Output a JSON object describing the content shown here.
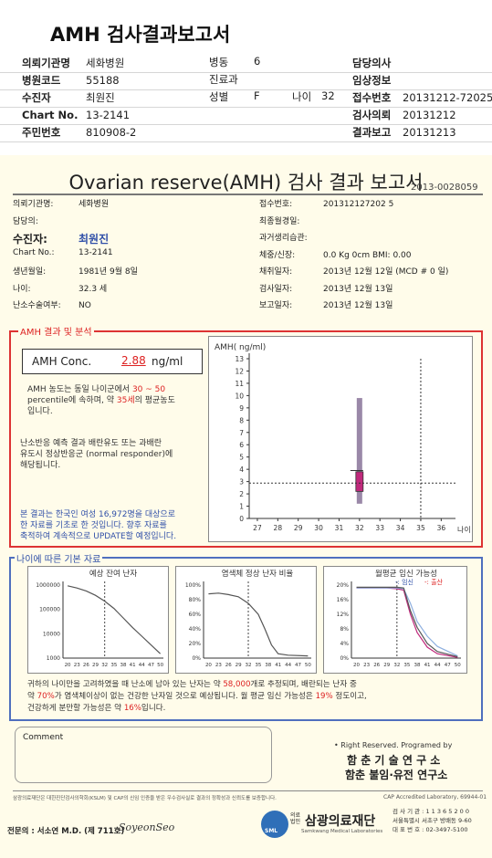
{
  "title": "AMH 검사결과보고서",
  "header": {
    "left": [
      [
        "의뢰기관명",
        "세화병원"
      ],
      [
        "병원코드",
        "55188"
      ],
      [
        "수진자",
        "최원진"
      ],
      [
        "Chart No.",
        "13-2141"
      ],
      [
        "주민번호",
        "810908-2"
      ]
    ],
    "ward": [
      "병동",
      "6"
    ],
    "dept": [
      "진료과",
      ""
    ],
    "sex": [
      "성별",
      "F"
    ],
    "age": [
      "나이",
      "32"
    ],
    "right": [
      [
        "담당의사",
        ""
      ],
      [
        "임상정보",
        ""
      ],
      [
        "접수번호",
        "20131212-72025"
      ],
      [
        "검사의뢰",
        "20131212"
      ],
      [
        "결과보고",
        "20131213"
      ]
    ]
  },
  "report": {
    "title": "Ovarian reserve(AMH) 검사 결과 보고서",
    "code": "2013-0028059",
    "left_fields": [
      [
        "의뢰기관명:",
        "세화병원"
      ],
      [
        "담당의:",
        ""
      ],
      [
        "수진자:",
        "최원진"
      ],
      [
        "Chart No.:",
        "13-2141"
      ],
      [
        "생년월일:",
        "1981년 9월 8일"
      ],
      [
        "나이:",
        "32.3 세"
      ],
      [
        "난소수술여부:",
        "NO"
      ]
    ],
    "right_fields": [
      [
        "접수번호:",
        "201312127202 5"
      ],
      [
        "최종월경일:",
        ""
      ],
      [
        "과거생리습관:",
        ""
      ],
      [
        "체중/신장:",
        "0.0 Kg     0cm    BMI:  0.00"
      ],
      [
        "채취일자:",
        "2013년 12월 12일 (MCD # 0 일)"
      ],
      [
        "검사일자:",
        "2013년 12월 13일"
      ],
      [
        "보고일자:",
        "2013년 12월 13일"
      ]
    ],
    "amh_section": "AMH 결과 및 분석",
    "amh_label": "AMH Conc.",
    "amh_value": "2.88",
    "amh_unit": "ng/ml",
    "amh_text1a": "AMH 농도는 동일 나이군에서",
    "amh_text1b": "30 ~ 50",
    "amh_text2a": "percentile에 속하며, 약",
    "amh_text2b": "35세",
    "amh_text2c": "의 평균농도",
    "amh_text3": "입니다.",
    "resp_text": [
      "난소반응 예측 결과 배란유도 또는 과배란",
      "유도시 정상반응군 (normal responder)에",
      "해당됩니다."
    ],
    "note_text": [
      "본 결과는 한국인 여성 16,972명을 대상으로",
      "한 자료를 기초로 한 것입니다. 향후 자료를",
      "축적하여 계속적으로 UPDATE할 예정입니다."
    ],
    "chart_ylabel": "AMH( ng/ml)",
    "chart_xlabel": "나이",
    "age_section": "나이에 따른 기본 자료",
    "mini1_title": "예상 잔여 난자",
    "mini2_title": "염색체 정상 난자 비율",
    "mini3_title": "월평균 임신 가능성",
    "mini3_legend_a": "임신",
    "mini3_legend_b": "출산",
    "summary": [
      "귀하의 나이만을 고려하였을 때 난소에 남아 있는 난자는 약",
      "58,000",
      "개로 추정되며, 배란되는 난자 중",
      "약",
      "70%",
      "가 염색체이상이 없는 건강한 난자일 것으로 예상됩니다. 월 평균 임신 가능성은",
      "19%",
      "정도이고,",
      "건강하게 분만할 가능성은 약",
      "16%",
      "입니다."
    ],
    "comment_label": "Comment",
    "rights": "• Right Reserved. Programed by",
    "inst1": "함 춘 기 술 연 구 소",
    "inst2": "함춘 불임·유전 연구소",
    "cap": "CAP Accredited Laboratory, 69944-01",
    "footnote": "삼광의료재단은 대한진단검사의학회(KSLM) 및 CAP의 신임 인증을 받은 우수검사실로 결과의 정확성과 신뢰도를 보증합니다.",
    "doctor": "전문의 : 서소연 M.D. (제 711호)",
    "signature": "SoyeonSeo",
    "org_small": "의료법인",
    "org": "삼광의료재단",
    "org_en": "Samkwang Medical Laboratories",
    "org_info": [
      "검 사 기 관 : 1 1 3 6 5 2 0 0",
      "서울특별시 서초구 방배동 9-60",
      "대 표 번 호 : 02-3497-5100"
    ]
  },
  "chart_data": [
    {
      "type": "box",
      "title": "",
      "xlabel": "나이",
      "ylabel": "AMH( ng/ml)",
      "x_ticks": [
        27,
        28,
        29,
        30,
        31,
        32,
        33,
        34,
        35,
        36
      ],
      "ylim": [
        0,
        13
      ],
      "box": {
        "x": 32,
        "whisker_low": 1.2,
        "whisker_high": 9.8,
        "q1": 2.2,
        "q3": 3.8
      },
      "patient": {
        "age": 32.3,
        "amh": 2.88
      },
      "ref_age": 35
    },
    {
      "type": "line",
      "title": "예상 잔여 난자",
      "x_ticks": [
        20,
        23,
        26,
        29,
        32,
        35,
        38,
        41,
        44,
        47,
        50
      ],
      "y_ticks": [
        1000,
        10000,
        100000,
        1000000
      ],
      "log_y": true,
      "marker_x": 32
    },
    {
      "type": "line",
      "title": "염색체 정상 난자 비율",
      "x_ticks": [
        20,
        23,
        26,
        29,
        32,
        35,
        38,
        41,
        44,
        47,
        50
      ],
      "y_ticks": [
        "0%",
        "20%",
        "40%",
        "60%",
        "80%",
        "100%"
      ],
      "marker_x": 32
    },
    {
      "type": "line",
      "title": "월평균 임신 가능성",
      "x_ticks": [
        20,
        23,
        26,
        29,
        32,
        35,
        38,
        41,
        44,
        47,
        50
      ],
      "y_ticks": [
        "0%",
        "4%",
        "8%",
        "12%",
        "16%",
        "20%"
      ],
      "series": [
        {
          "name": "임신"
        },
        {
          "name": "출산"
        }
      ],
      "marker_x": 32
    }
  ]
}
